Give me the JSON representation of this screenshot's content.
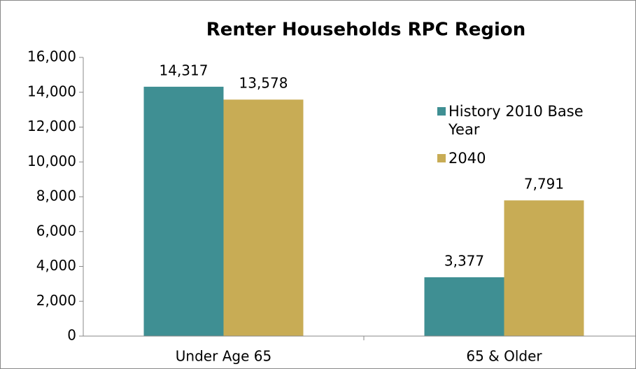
{
  "chart_data": {
    "type": "bar",
    "title": "Renter Households RPC Region",
    "categories": [
      "Under Age 65",
      "65 & Older"
    ],
    "series": [
      {
        "name": "History 2010 Base Year",
        "color": "#3f8f93",
        "values": [
          14317,
          3377
        ],
        "value_labels": [
          "14,317",
          "3,377"
        ]
      },
      {
        "name": "2040",
        "color": "#c8ac55",
        "values": [
          13578,
          7791
        ],
        "value_labels": [
          "13,578",
          "7,791"
        ]
      }
    ],
    "ylim": [
      0,
      16000
    ],
    "yticks": [
      0,
      {
        "value": 2000,
        "label": "2,000"
      },
      {
        "value": 4000,
        "label": "4,000"
      },
      {
        "value": 6000,
        "label": "6,000"
      },
      {
        "value": 8000,
        "label": "8,000"
      },
      {
        "value": 10000,
        "label": "10,000"
      },
      {
        "value": 12000,
        "label": "12,000"
      },
      {
        "value": 14000,
        "label": "14,000"
      },
      {
        "value": 16000,
        "label": "16,000"
      }
    ],
    "grid": false,
    "legend": "upper right"
  }
}
